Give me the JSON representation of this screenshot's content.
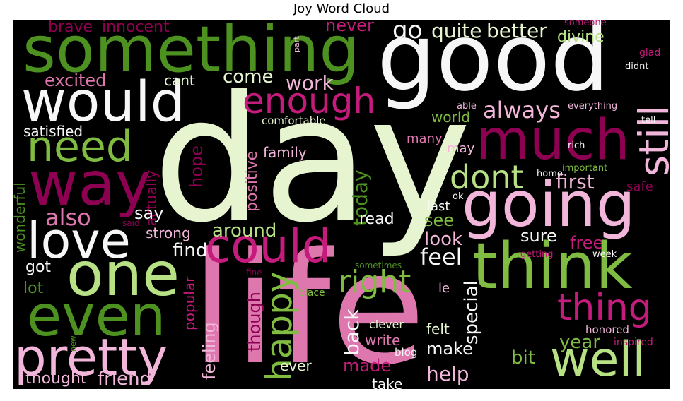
{
  "title": "Joy Word Cloud",
  "palette": {
    "background": "#000000",
    "dark_pink": "#8e0152",
    "pink": "#de77ae",
    "light_pink": "#f1b6da",
    "pale": "#f7f7f7",
    "pale_green": "#e6f5d0",
    "light_green": "#b8e186",
    "green": "#7fbc41",
    "dark_green": "#4d9221"
  },
  "words": [
    {
      "text": "day",
      "color": "#e6f5d0"
    },
    {
      "text": "life",
      "color": "#de77ae"
    },
    {
      "text": "good",
      "color": "#f7f7f7"
    },
    {
      "text": "something",
      "color": "#4d9221"
    },
    {
      "text": "would",
      "color": "#f7f7f7"
    },
    {
      "text": "much",
      "color": "#8e0152"
    },
    {
      "text": "going",
      "color": "#f1b6da"
    },
    {
      "text": "think",
      "color": "#7fbc41"
    },
    {
      "text": "way",
      "color": "#8e0152"
    },
    {
      "text": "need",
      "color": "#7fbc41"
    },
    {
      "text": "love",
      "color": "#f7f7f7"
    },
    {
      "text": "one",
      "color": "#b8e186"
    },
    {
      "text": "even",
      "color": "#4d9221"
    },
    {
      "text": "pretty",
      "color": "#f1b6da"
    },
    {
      "text": "could",
      "color": "#c51b7d"
    },
    {
      "text": "well",
      "color": "#b8e186"
    },
    {
      "text": "still",
      "color": "#f1b6da"
    },
    {
      "text": "enough",
      "color": "#c51b7d"
    },
    {
      "text": "thing",
      "color": "#c51b7d"
    },
    {
      "text": "dont",
      "color": "#b8e186"
    },
    {
      "text": "happy",
      "color": "#7fbc41"
    },
    {
      "text": "right",
      "color": "#7fbc41"
    },
    {
      "text": "always",
      "color": "#f1b6da"
    },
    {
      "text": "first",
      "color": "#f1b6da"
    },
    {
      "text": "better",
      "color": "#e6f5d0"
    },
    {
      "text": "quite",
      "color": "#e6f5d0"
    },
    {
      "text": "go",
      "color": "#f7f7f7"
    },
    {
      "text": "never",
      "color": "#c51b7d"
    },
    {
      "text": "brave",
      "color": "#8e0152"
    },
    {
      "text": "innocent",
      "color": "#8e0152"
    },
    {
      "text": "divine",
      "color": "#b8e186"
    },
    {
      "text": "excited",
      "color": "#de77ae"
    },
    {
      "text": "cant",
      "color": "#e6f5d0"
    },
    {
      "text": "come",
      "color": "#e6f5d0"
    },
    {
      "text": "work",
      "color": "#f1b6da"
    },
    {
      "text": "satisfied",
      "color": "#f7f7f7"
    },
    {
      "text": "comfortable",
      "color": "#e6f5d0"
    },
    {
      "text": "world",
      "color": "#7fbc41"
    },
    {
      "text": "able",
      "color": "#f1b6da"
    },
    {
      "text": "everything",
      "color": "#f1b6da"
    },
    {
      "text": "glad",
      "color": "#c51b7d"
    },
    {
      "text": "didnt",
      "color": "#f7f7f7"
    },
    {
      "text": "someone",
      "color": "#c51b7d"
    },
    {
      "text": "part",
      "color": "#f1b6da"
    },
    {
      "text": "tell",
      "color": "#f7f7f7"
    },
    {
      "text": "rich",
      "color": "#f7f7f7"
    },
    {
      "text": "many",
      "color": "#de77ae"
    },
    {
      "text": "may",
      "color": "#f1b6da"
    },
    {
      "text": "family",
      "color": "#f1b6da"
    },
    {
      "text": "hope",
      "color": "#8e0152"
    },
    {
      "text": "positive",
      "color": "#de77ae"
    },
    {
      "text": "actually",
      "color": "#8e0152"
    },
    {
      "text": "today",
      "color": "#4d9221"
    },
    {
      "text": "important",
      "color": "#7fbc41"
    },
    {
      "text": "home",
      "color": "#f7f7f7"
    },
    {
      "text": "safe",
      "color": "#8e0152"
    },
    {
      "text": "ok",
      "color": "#f7f7f7"
    },
    {
      "text": "wonderful",
      "color": "#4d9221"
    },
    {
      "text": "also",
      "color": "#de77ae"
    },
    {
      "text": "say",
      "color": "#f7f7f7"
    },
    {
      "text": "said",
      "color": "#8e0152"
    },
    {
      "text": "strong",
      "color": "#f1b6da"
    },
    {
      "text": "around",
      "color": "#b8e186"
    },
    {
      "text": "read",
      "color": "#f7f7f7"
    },
    {
      "text": "last",
      "color": "#f7f7f7"
    },
    {
      "text": "see",
      "color": "#7fbc41"
    },
    {
      "text": "look",
      "color": "#f1b6da"
    },
    {
      "text": "sure",
      "color": "#f7f7f7"
    },
    {
      "text": "free",
      "color": "#c51b7d"
    },
    {
      "text": "find",
      "color": "#f7f7f7"
    },
    {
      "text": "feel",
      "color": "#f7f7f7"
    },
    {
      "text": "getting",
      "color": "#c51b7d"
    },
    {
      "text": "week",
      "color": "#f7f7f7"
    },
    {
      "text": "got",
      "color": "#f7f7f7"
    },
    {
      "text": "sometimes",
      "color": "#4d9221"
    },
    {
      "text": "fine",
      "color": "#8e0152"
    },
    {
      "text": "lot",
      "color": "#4d9221"
    },
    {
      "text": "popular",
      "color": "#c51b7d"
    },
    {
      "text": "place",
      "color": "#7fbc41"
    },
    {
      "text": "le",
      "color": "#f1b6da"
    },
    {
      "text": "special",
      "color": "#f7f7f7"
    },
    {
      "text": "though",
      "color": "#8e0152"
    },
    {
      "text": "back",
      "color": "#f7f7f7"
    },
    {
      "text": "clever",
      "color": "#e6f5d0"
    },
    {
      "text": "felt",
      "color": "#e6f5d0"
    },
    {
      "text": "honored",
      "color": "#f1b6da"
    },
    {
      "text": "new",
      "color": "#4d9221"
    },
    {
      "text": "feeling",
      "color": "#f1b6da"
    },
    {
      "text": "write",
      "color": "#de77ae"
    },
    {
      "text": "make",
      "color": "#f7f7f7"
    },
    {
      "text": "year",
      "color": "#7fbc41"
    },
    {
      "text": "inspired",
      "color": "#c51b7d"
    },
    {
      "text": "blog",
      "color": "#f7f7f7"
    },
    {
      "text": "bit",
      "color": "#7fbc41"
    },
    {
      "text": "ever",
      "color": "#e6f5d0"
    },
    {
      "text": "made",
      "color": "#c51b7d"
    },
    {
      "text": "help",
      "color": "#f1b6da"
    },
    {
      "text": "thought",
      "color": "#f1b6da"
    },
    {
      "text": "friend",
      "color": "#f1b6da"
    },
    {
      "text": "take",
      "color": "#f7f7f7"
    }
  ]
}
